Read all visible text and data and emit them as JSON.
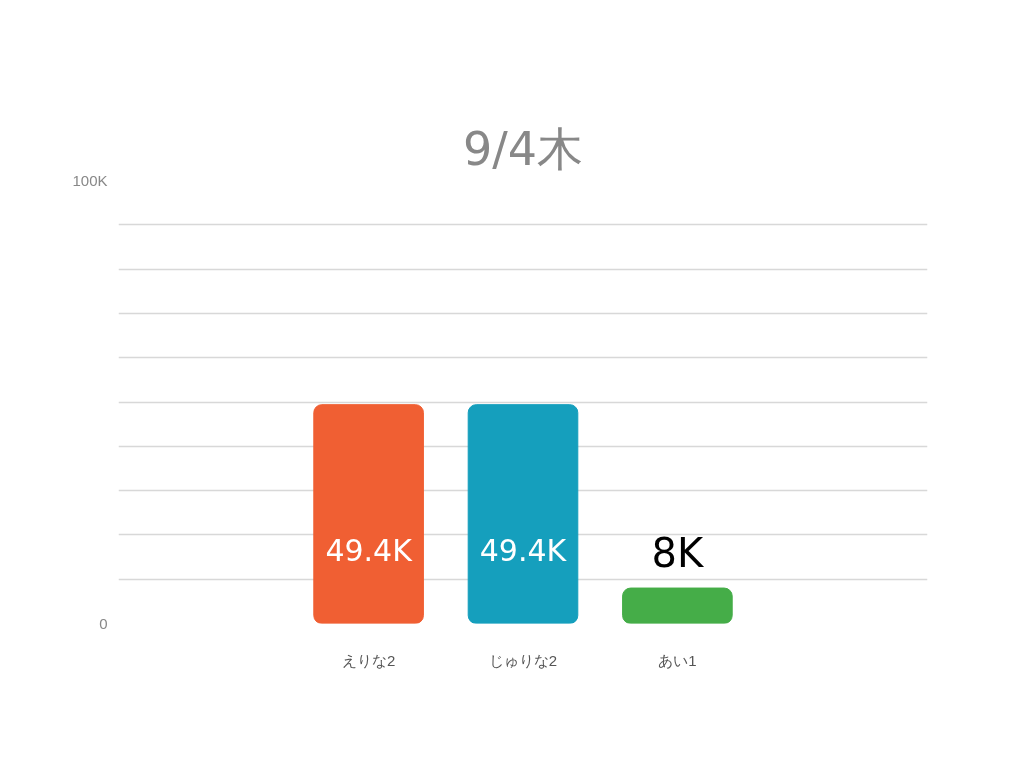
{
  "chart_data": {
    "type": "bar",
    "title": "9/4木",
    "categories": [
      "えりな2",
      "じゅりな2",
      "あい1"
    ],
    "values": [
      49.4,
      49.4,
      8
    ],
    "colors": [
      "#f05f33",
      "#159fbd",
      "#45ad48"
    ],
    "value_labels": [
      "49.4K",
      "49.4K",
      "8K"
    ],
    "ylim": [
      0,
      100
    ],
    "yticks": [
      0,
      {
        "value": 10,
        "label": null
      },
      {
        "value": 20,
        "label": null
      },
      {
        "value": 30,
        "label": null
      },
      {
        "value": 40,
        "label": null
      },
      {
        "value": 50,
        "label": null
      },
      {
        "value": 60,
        "label": null
      },
      {
        "value": 70,
        "label": null
      },
      {
        "value": 80,
        "label": null
      },
      {
        "value": 90,
        "label": null
      },
      {
        "value": 100,
        "label": "100K"
      }
    ],
    "grid": "y"
  }
}
